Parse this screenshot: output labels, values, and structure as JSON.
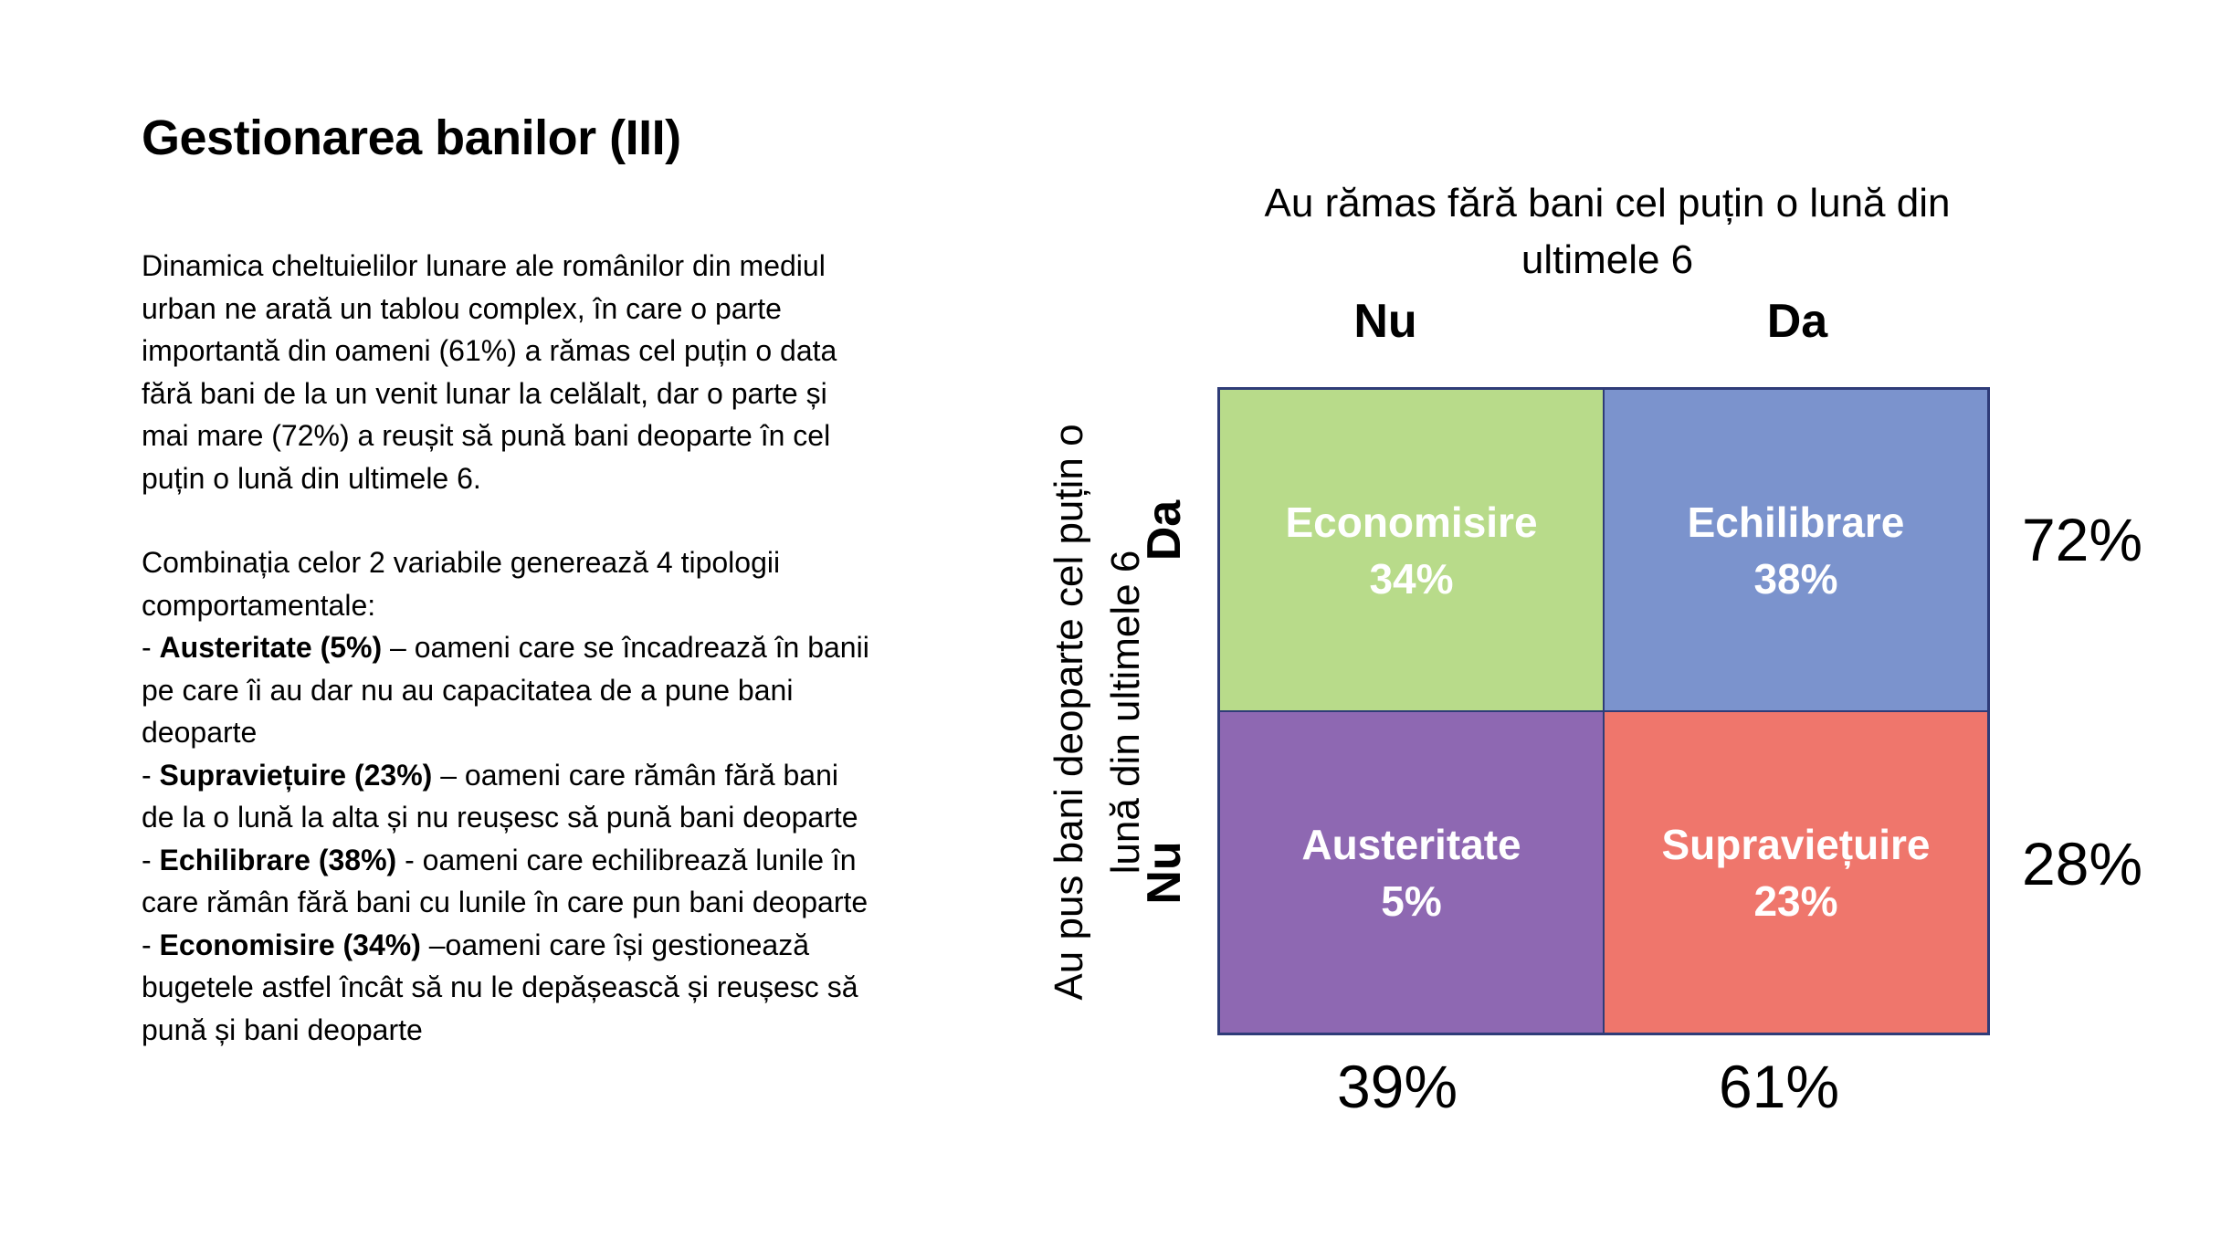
{
  "slide": {
    "title": "Gestionarea banilor (III)",
    "paragraph1": "Dinamica cheltuielilor lunare ale românilor din mediul urban ne arată un tablou complex, în care o parte importantă din oameni (61%) a rămas cel puțin o data fără bani de la un venit lunar la celălalt, dar o parte și mai mare (72%) a reușit să pună bani deoparte în cel puțin o lună din ultimele 6.",
    "paragraph2": "Combinația celor 2 variabile generează 4 tipologii comportamentale:",
    "items": [
      {
        "prefix": "- ",
        "term": "Austeritate (5%)",
        "text": " – oameni care se încadrează în banii pe care îi au dar nu au capacitatea de a pune bani deoparte"
      },
      {
        "prefix": "- ",
        "term": "Supraviețuire (23%)",
        "text": " – oameni care rămân fără bani de la o lună la alta și nu reușesc să pună bani deoparte"
      },
      {
        "prefix": "- ",
        "term": "Echilibrare (38%)",
        "text": " - oameni care echilibrează lunile în care rămân fără bani cu lunile în care pun bani deoparte"
      },
      {
        "prefix": "- ",
        "term": "Economisire (34%)",
        "text": " –oameni care își gestionează bugetele astfel încât să nu le depășească și reușesc să pună și bani deoparte"
      }
    ]
  },
  "matrix": {
    "column_axis_title": "Au rămas fără bani cel puțin o lună din ultimele 6",
    "row_axis_title": "Au pus bani deoparte cel puțin o lună din ultimele 6",
    "columns": [
      "Nu",
      "Da"
    ],
    "rows": [
      "Da",
      "Nu"
    ],
    "cells": [
      {
        "name": "Economisire",
        "value": "34%",
        "color": "#b8db8a"
      },
      {
        "name": "Echilibrare",
        "value": "38%",
        "color": "#7b93cd"
      },
      {
        "name": "Austeritate",
        "value": "5%",
        "color": "#8e68b2"
      },
      {
        "name": "Supraviețuire",
        "value": "23%",
        "color": "#ef766c"
      }
    ],
    "row_totals": [
      "72%",
      "28%"
    ],
    "column_totals": [
      "39%",
      "61%"
    ]
  }
}
